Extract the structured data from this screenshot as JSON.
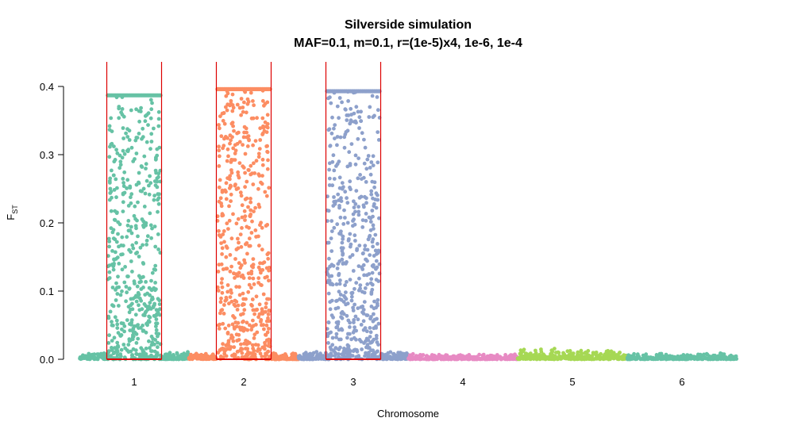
{
  "chart_data": {
    "type": "scatter",
    "title": "Silverside simulation",
    "subtitle": "MAF=0.1, m=0.1, r=(1e-5)x4, 1e-6, 1e-4",
    "xlabel": "Chromosome",
    "ylabel_main": "F",
    "ylabel_sub": "ST",
    "categories": [
      "1",
      "2",
      "3",
      "4",
      "5",
      "6"
    ],
    "xlim": [
      0.5,
      6.5
    ],
    "ylim": [
      0,
      0.4
    ],
    "yticks": [
      "0.0",
      "0.1",
      "0.2",
      "0.3",
      "0.4"
    ],
    "ytick_values": [
      0,
      0.1,
      0.2,
      0.3,
      0.4
    ],
    "grid": false,
    "series": [
      {
        "chromosome": "1",
        "color": "#66c2a5",
        "background_fst_max": 0.012,
        "highlight_range": [
          0.75,
          1.25
        ],
        "peak_fst": 0.387
      },
      {
        "chromosome": "2",
        "color": "#fc8d62",
        "background_fst_max": 0.01,
        "highlight_range": [
          1.75,
          2.25
        ],
        "peak_fst": 0.396
      },
      {
        "chromosome": "3",
        "color": "#8da0cb",
        "background_fst_max": 0.012,
        "highlight_range": [
          2.75,
          3.25
        ],
        "peak_fst": 0.393
      },
      {
        "chromosome": "4",
        "color": "#e78ac3",
        "background_fst_max": 0.008
      },
      {
        "chromosome": "5",
        "color": "#a6d854",
        "background_fst_max": 0.016
      },
      {
        "chromosome": "6",
        "color": "#66c2a5",
        "background_fst_max": 0.009
      }
    ],
    "highlight_color": "#dd0000"
  }
}
